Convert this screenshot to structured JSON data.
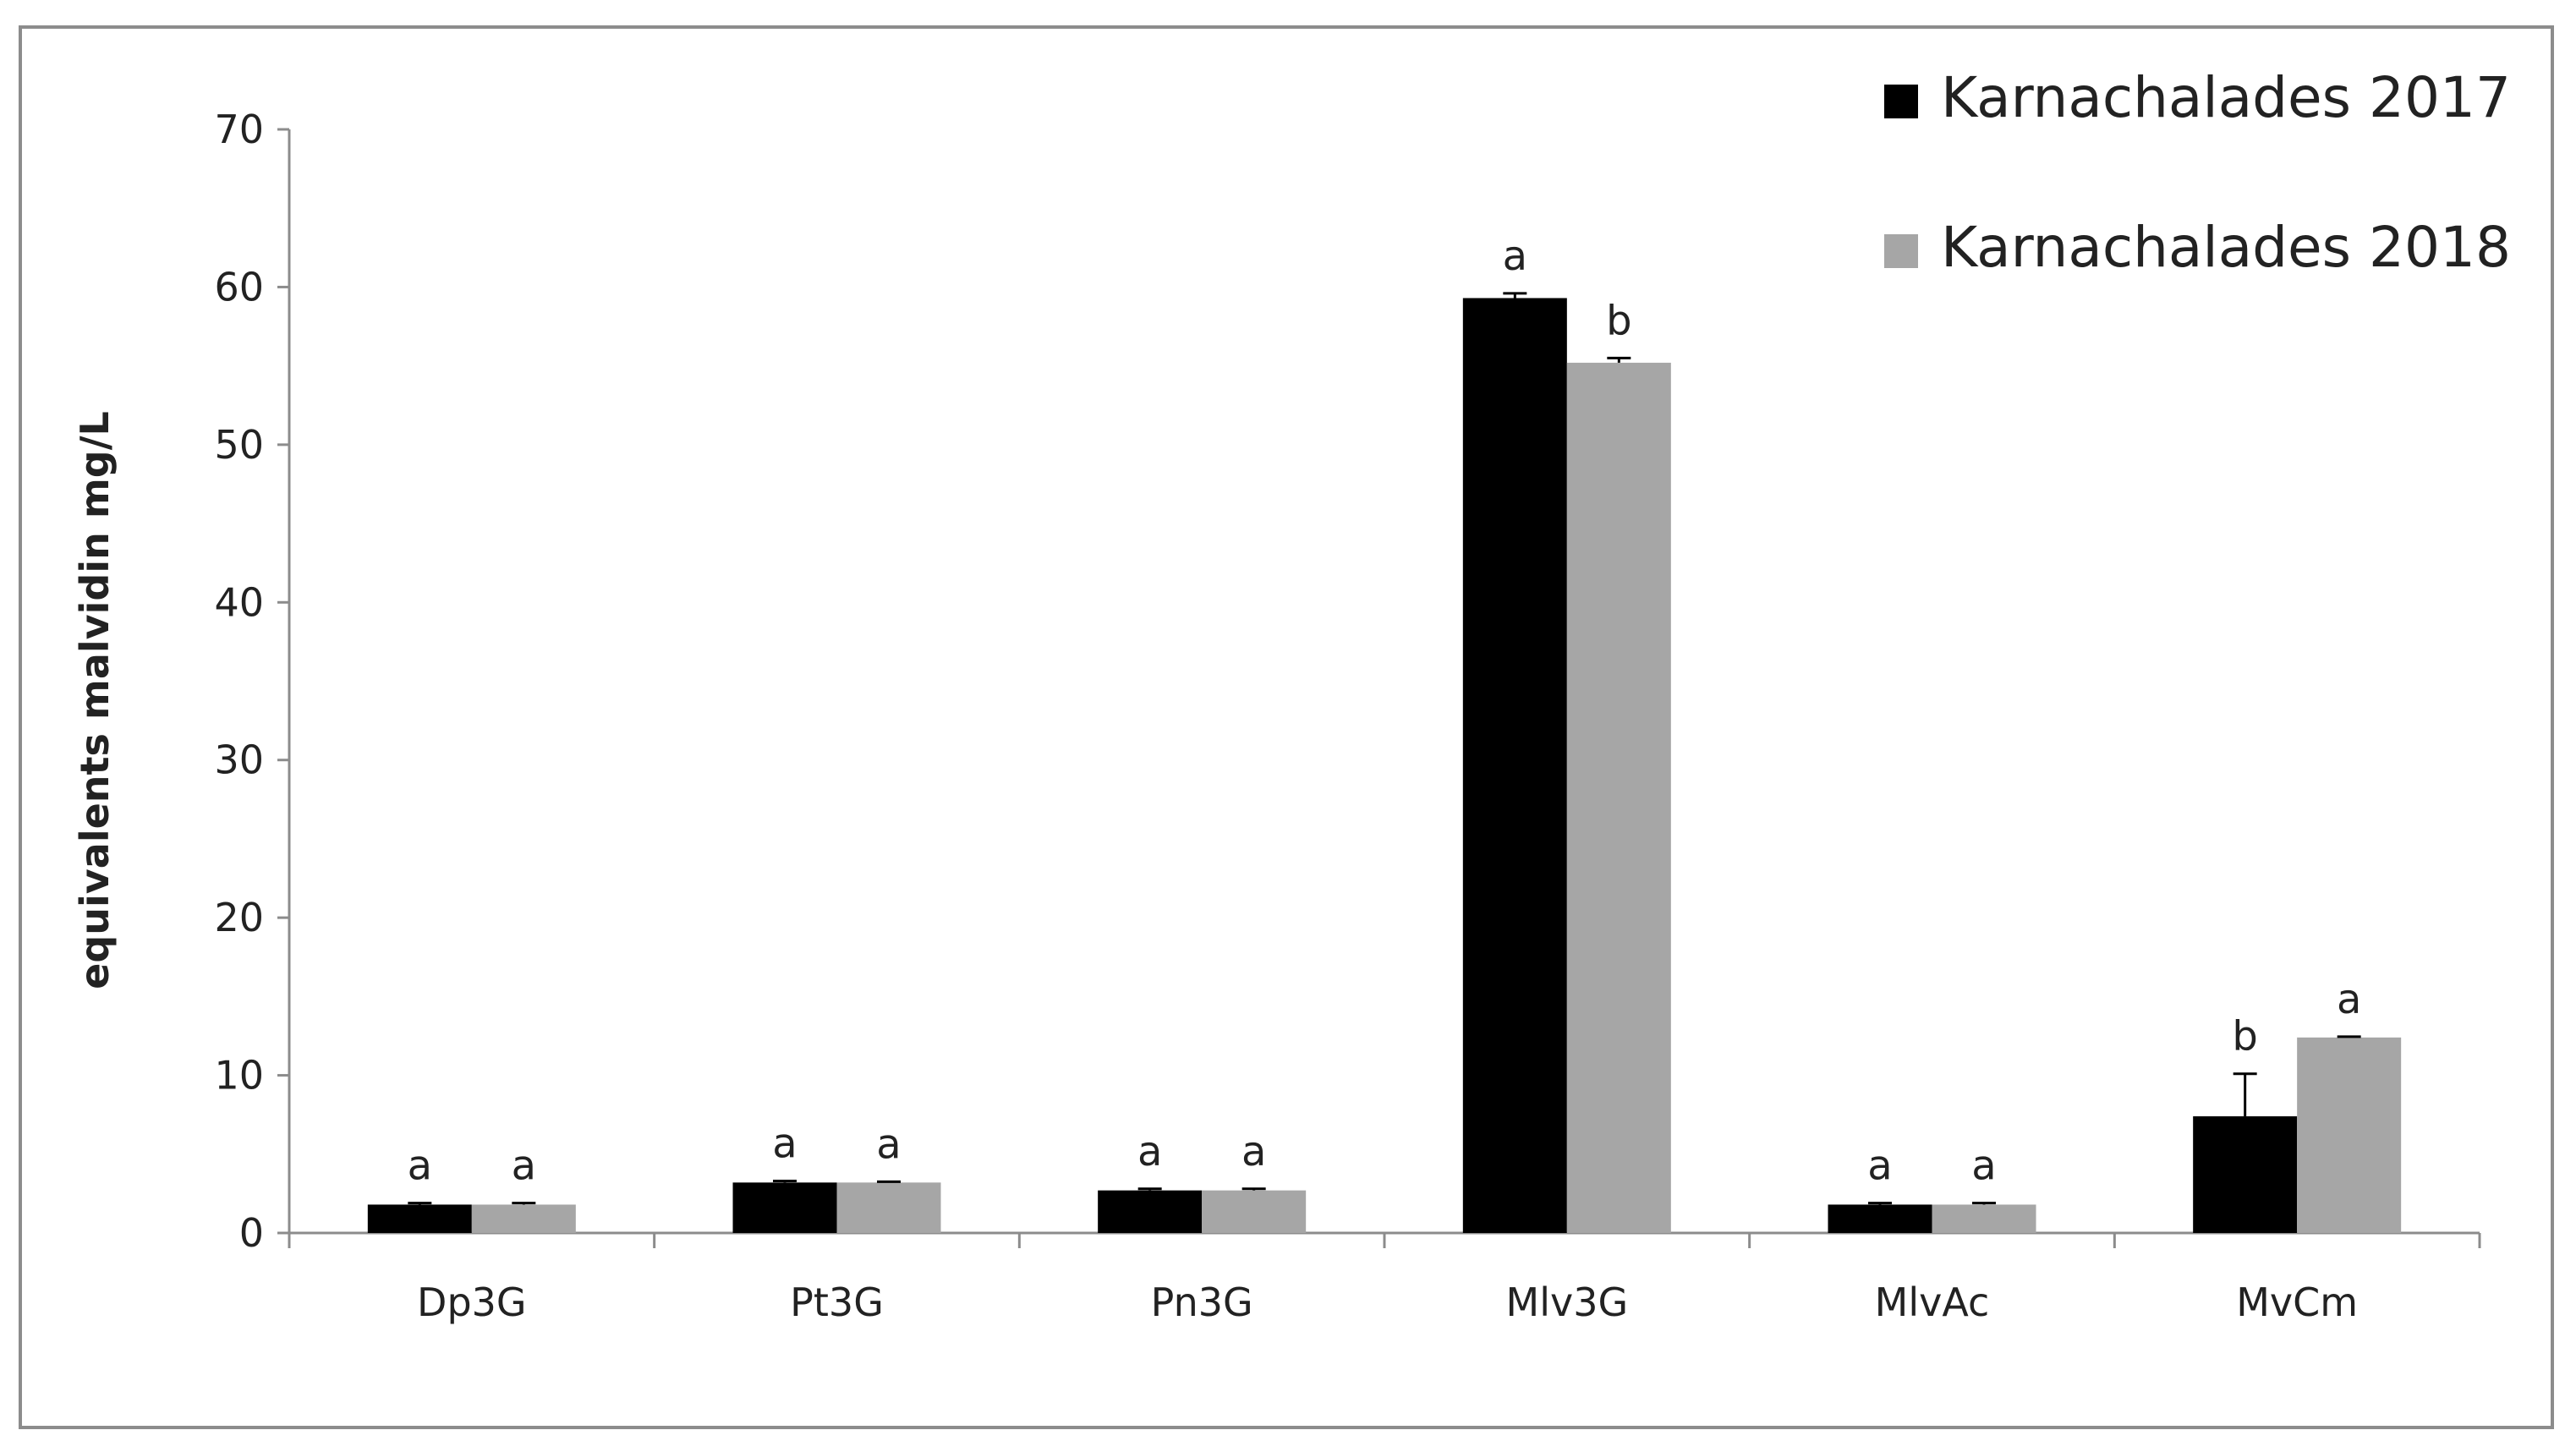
{
  "chart_data": {
    "type": "bar",
    "title": "",
    "xlabel": "",
    "ylabel": "equivalents malvidin mg/L",
    "ylim": [
      0,
      70
    ],
    "yticks": [
      "0",
      "10",
      "20",
      "30",
      "40",
      "50",
      "60",
      "70"
    ],
    "ytick_values": [
      0,
      10,
      20,
      30,
      40,
      50,
      60,
      70
    ],
    "categories": [
      "Dp3G",
      "Pt3G",
      "Pn3G",
      "Mlv3G",
      "MlvAc",
      "MvCm"
    ],
    "grid": false,
    "legend_position": "top-right",
    "series": [
      {
        "name": "Karnachalades 2017",
        "color": "#000000",
        "values": [
          1.8,
          3.2,
          2.7,
          59.3,
          1.8,
          7.4
        ],
        "errors": [
          0.1,
          0.1,
          0.1,
          0.3,
          0.1,
          2.7
        ],
        "letters": [
          "a",
          "a",
          "a",
          "a",
          "a",
          "b"
        ]
      },
      {
        "name": "Karnachalades 2018",
        "color": "#a6a6a6",
        "values": [
          1.8,
          3.2,
          2.7,
          55.2,
          1.8,
          12.4
        ],
        "errors": [
          0.1,
          0.05,
          0.1,
          0.3,
          0.1,
          0.05
        ],
        "letters": [
          "a",
          "a",
          "a",
          "b",
          "a",
          "a"
        ]
      }
    ]
  }
}
